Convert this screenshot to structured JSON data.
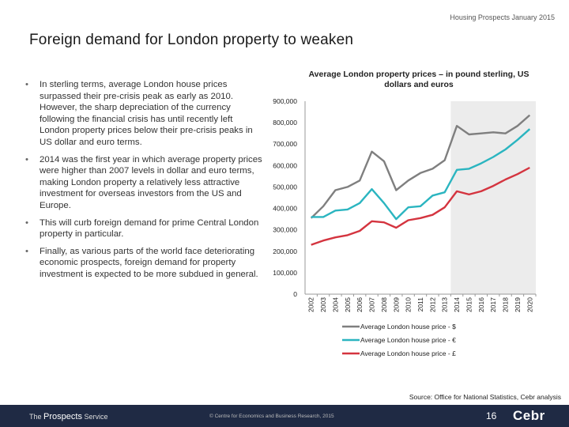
{
  "header": {
    "text": "Housing Prospects January 2015"
  },
  "title": "Foreign demand for London property to weaken",
  "bullets": [
    "In sterling terms, average London house prices surpassed their pre-crisis peak as early as 2010. However, the sharp depreciation of the currency following the financial crisis has until recently left London property prices below their pre-crisis peaks in US dollar and euro terms.",
    "2014 was the first year in which average property prices were higher than 2007 levels in dollar and euro terms, making London property a relatively less attractive investment for overseas investors from the US and Europe.",
    "This will curb foreign demand for prime Central London property in particular.",
    "Finally, as various parts of the world face deteriorating economic prospects, foreign demand for property investment is expected to be more subdued in general."
  ],
  "bullet_marker": "•",
  "source": "Source: Office for National Statistics, Cebr analysis",
  "footer": {
    "prefix": "The",
    "brand": "Prospects",
    "suffix": "Service",
    "copyright": "© Centre for Economics and Business Research, 2015",
    "page_number": "16",
    "logo": "Cebr"
  },
  "colors": {
    "usd": "#7f7f7f",
    "eur": "#2bb5c0",
    "gbp": "#d4343f",
    "forecast_shade": "#ececec",
    "footer_bg": "#1f2a44"
  },
  "chart_data": {
    "type": "line",
    "title": "Average London property prices – in pound sterling, US dollars and euros",
    "x": [
      "2002",
      "2003",
      "2004",
      "2005",
      "2006",
      "2007",
      "2008",
      "2009",
      "2010",
      "2011",
      "2012",
      "2013",
      "2014",
      "2015",
      "2016",
      "2017",
      "2018",
      "2019",
      "2020"
    ],
    "y_ticks": [
      "0",
      "100,000",
      "200,000",
      "300,000",
      "400,000",
      "500,000",
      "600,000",
      "700,000",
      "800,000",
      "900,000"
    ],
    "ylim": [
      0,
      900000
    ],
    "grid": false,
    "shaded_x_range": [
      "2014",
      "2020"
    ],
    "legend_position": "bottom",
    "series": [
      {
        "key": "usd",
        "name": "Average London house price - $",
        "values": [
          355000,
          410000,
          485000,
          500000,
          530000,
          665000,
          620000,
          485000,
          530000,
          565000,
          585000,
          625000,
          785000,
          745000,
          750000,
          755000,
          750000,
          785000,
          835000
        ]
      },
      {
        "key": "eur",
        "name": "Average London house price - €",
        "values": [
          360000,
          360000,
          390000,
          395000,
          425000,
          490000,
          425000,
          350000,
          405000,
          410000,
          460000,
          475000,
          580000,
          585000,
          610000,
          640000,
          675000,
          720000,
          770000
        ]
      },
      {
        "key": "gbp",
        "name": "Average London house price - £",
        "values": [
          230000,
          250000,
          265000,
          275000,
          295000,
          340000,
          335000,
          310000,
          345000,
          355000,
          370000,
          405000,
          480000,
          465000,
          480000,
          505000,
          535000,
          560000,
          590000
        ]
      }
    ]
  }
}
